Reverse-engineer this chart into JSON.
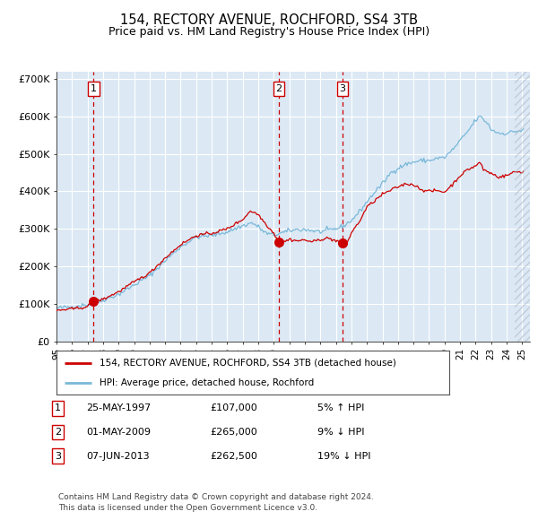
{
  "title": "154, RECTORY AVENUE, ROCHFORD, SS4 3TB",
  "subtitle": "Price paid vs. HM Land Registry's House Price Index (HPI)",
  "title_fontsize": 10.5,
  "subtitle_fontsize": 9,
  "xlim": [
    1995.25,
    2025.5
  ],
  "ylim": [
    0,
    720000
  ],
  "yticks": [
    0,
    100000,
    200000,
    300000,
    400000,
    500000,
    600000,
    700000
  ],
  "ytick_labels": [
    "£0",
    "£100K",
    "£200K",
    "£300K",
    "£400K",
    "£500K",
    "£600K",
    "£700K"
  ],
  "hpi_color": "#7ab8d9",
  "price_color": "#cc0000",
  "background_color": "#dce9f5",
  "grid_color": "#ffffff",
  "sale_dates": [
    1997.39,
    2009.33,
    2013.43
  ],
  "sale_prices": [
    107000,
    265000,
    262500
  ],
  "sale_labels": [
    "1",
    "2",
    "3"
  ],
  "legend_label_price": "154, RECTORY AVENUE, ROCHFORD, SS4 3TB (detached house)",
  "legend_label_hpi": "HPI: Average price, detached house, Rochford",
  "table_rows": [
    {
      "num": "1",
      "date": "25-MAY-1997",
      "price": "£107,000",
      "hpi": "5% ↑ HPI"
    },
    {
      "num": "2",
      "date": "01-MAY-2009",
      "price": "£265,000",
      "hpi": "9% ↓ HPI"
    },
    {
      "num": "3",
      "date": "07-JUN-2013",
      "price": "£262,500",
      "hpi": "19% ↓ HPI"
    }
  ],
  "footnote": "Contains HM Land Registry data © Crown copyright and database right 2024.\nThis data is licensed under the Open Government Licence v3.0.",
  "xtick_years": [
    1995,
    1996,
    1997,
    1998,
    1999,
    2000,
    2001,
    2002,
    2003,
    2004,
    2005,
    2006,
    2007,
    2008,
    2009,
    2010,
    2011,
    2012,
    2013,
    2014,
    2015,
    2016,
    2017,
    2018,
    2019,
    2020,
    2021,
    2022,
    2023,
    2024,
    2025
  ],
  "hpi_anchors": [
    [
      1995.0,
      88000
    ],
    [
      1996.0,
      92000
    ],
    [
      1997.0,
      98000
    ],
    [
      1997.4,
      102000
    ],
    [
      1998.0,
      110000
    ],
    [
      1999.0,
      125000
    ],
    [
      2000.0,
      150000
    ],
    [
      2001.0,
      175000
    ],
    [
      2002.0,
      215000
    ],
    [
      2003.0,
      252000
    ],
    [
      2004.0,
      278000
    ],
    [
      2005.0,
      282000
    ],
    [
      2006.0,
      292000
    ],
    [
      2007.0,
      308000
    ],
    [
      2007.6,
      316000
    ],
    [
      2008.0,
      305000
    ],
    [
      2008.5,
      288000
    ],
    [
      2009.0,
      283000
    ],
    [
      2009.33,
      287000
    ],
    [
      2009.8,
      292000
    ],
    [
      2010.0,
      295000
    ],
    [
      2010.5,
      298000
    ],
    [
      2011.0,
      298000
    ],
    [
      2011.5,
      295000
    ],
    [
      2012.0,
      292000
    ],
    [
      2012.5,
      296000
    ],
    [
      2013.0,
      300000
    ],
    [
      2013.43,
      306000
    ],
    [
      2014.0,
      322000
    ],
    [
      2014.5,
      345000
    ],
    [
      2015.0,
      372000
    ],
    [
      2015.5,
      398000
    ],
    [
      2016.0,
      420000
    ],
    [
      2016.5,
      448000
    ],
    [
      2017.0,
      462000
    ],
    [
      2017.5,
      472000
    ],
    [
      2018.0,
      478000
    ],
    [
      2018.5,
      482000
    ],
    [
      2019.0,
      482000
    ],
    [
      2019.5,
      488000
    ],
    [
      2020.0,
      490000
    ],
    [
      2020.5,
      510000
    ],
    [
      2021.0,
      535000
    ],
    [
      2021.5,
      560000
    ],
    [
      2022.0,
      590000
    ],
    [
      2022.3,
      600000
    ],
    [
      2022.8,
      580000
    ],
    [
      2023.0,
      565000
    ],
    [
      2023.5,
      555000
    ],
    [
      2024.0,
      555000
    ],
    [
      2024.5,
      560000
    ],
    [
      2025.0,
      562000
    ]
  ],
  "price_anchors": [
    [
      1995.0,
      82000
    ],
    [
      1996.0,
      86000
    ],
    [
      1997.0,
      92000
    ],
    [
      1997.39,
      107000
    ],
    [
      1998.0,
      112000
    ],
    [
      1999.0,
      132000
    ],
    [
      2000.0,
      158000
    ],
    [
      2001.0,
      182000
    ],
    [
      2002.0,
      222000
    ],
    [
      2003.0,
      258000
    ],
    [
      2004.0,
      282000
    ],
    [
      2005.0,
      288000
    ],
    [
      2006.0,
      300000
    ],
    [
      2007.0,
      325000
    ],
    [
      2007.5,
      348000
    ],
    [
      2008.0,
      338000
    ],
    [
      2008.5,
      312000
    ],
    [
      2009.0,
      288000
    ],
    [
      2009.33,
      265000
    ],
    [
      2009.5,
      262000
    ],
    [
      2010.0,
      272000
    ],
    [
      2010.5,
      268000
    ],
    [
      2011.0,
      270000
    ],
    [
      2011.5,
      265000
    ],
    [
      2012.0,
      272000
    ],
    [
      2012.5,
      275000
    ],
    [
      2013.0,
      268000
    ],
    [
      2013.43,
      262500
    ],
    [
      2013.8,
      268000
    ],
    [
      2014.0,
      290000
    ],
    [
      2014.5,
      318000
    ],
    [
      2015.0,
      358000
    ],
    [
      2015.5,
      375000
    ],
    [
      2016.0,
      392000
    ],
    [
      2016.5,
      402000
    ],
    [
      2017.0,
      412000
    ],
    [
      2017.5,
      420000
    ],
    [
      2018.0,
      418000
    ],
    [
      2018.5,
      405000
    ],
    [
      2019.0,
      400000
    ],
    [
      2019.5,
      402000
    ],
    [
      2020.0,
      398000
    ],
    [
      2020.5,
      418000
    ],
    [
      2021.0,
      442000
    ],
    [
      2021.5,
      458000
    ],
    [
      2022.0,
      468000
    ],
    [
      2022.3,
      478000
    ],
    [
      2022.5,
      458000
    ],
    [
      2023.0,
      448000
    ],
    [
      2023.5,
      438000
    ],
    [
      2024.0,
      442000
    ],
    [
      2024.5,
      452000
    ],
    [
      2025.0,
      452000
    ]
  ]
}
